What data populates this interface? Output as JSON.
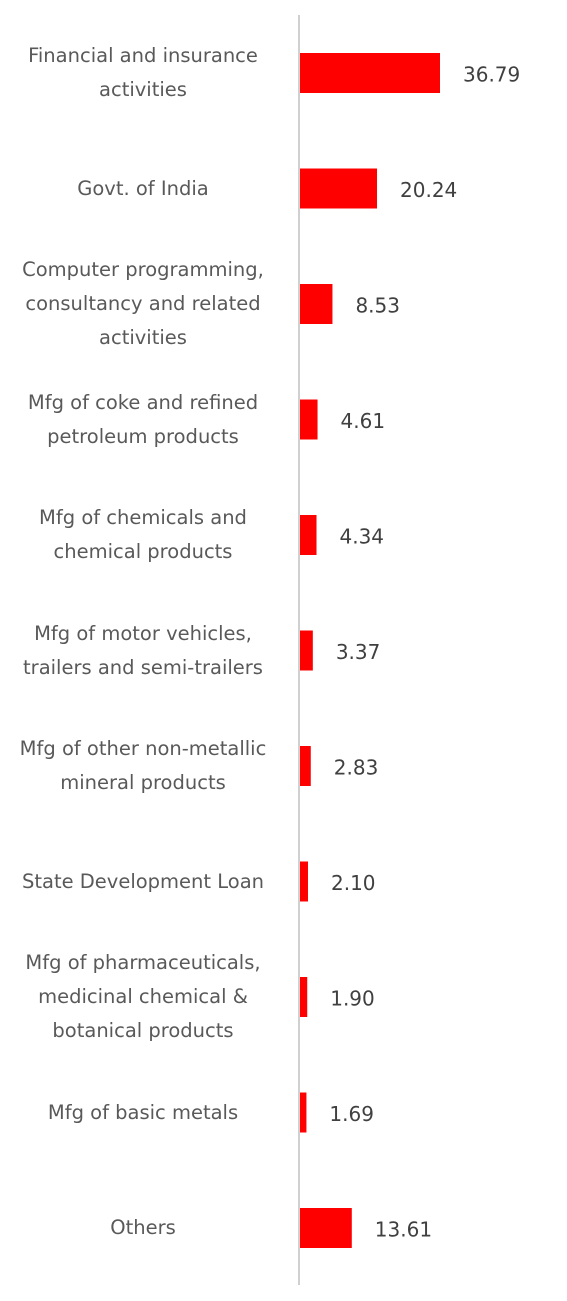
{
  "chart_data": {
    "type": "barh",
    "categories": [
      "Financial and insurance activities",
      "Govt. of India",
      "Computer programming, consultancy and related activities",
      "Mfg of coke and refined petroleum products",
      "Mfg of chemicals and chemical products",
      "Mfg of motor vehicles, trailers and semi-trailers",
      "Mfg of other non-metallic mineral products",
      "State Development Loan",
      "Mfg of pharmaceuticals, medicinal chemical & botanical products",
      "Mfg of basic metals",
      "Others"
    ],
    "values": [
      36.79,
      20.24,
      8.53,
      4.61,
      4.34,
      3.37,
      2.83,
      2.1,
      1.9,
      1.69,
      13.61
    ],
    "value_labels": [
      "36.79",
      "20.24",
      "8.53",
      "4.61",
      "4.34",
      "3.37",
      "2.83",
      "2.10",
      "1.90",
      "1.69",
      "13.61"
    ],
    "color": "#ff0000"
  }
}
